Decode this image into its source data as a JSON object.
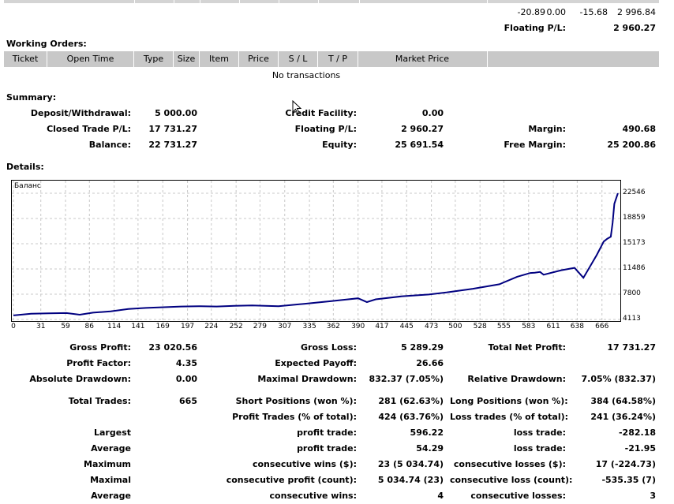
{
  "top_row": {
    "v1": "-20.89",
    "v2": "0.00",
    "v3": "-15.68",
    "v4": "2 996.84"
  },
  "floating_top": {
    "label": "Floating P/L:",
    "value": "2 960.27"
  },
  "working_orders": {
    "title": "Working Orders:",
    "columns": [
      "Ticket",
      "Open Time",
      "Type",
      "Size",
      "Item",
      "Price",
      "S / L",
      "T / P",
      "Market Price"
    ],
    "empty_text": "No transactions"
  },
  "summary": {
    "title": "Summary:",
    "deposit_label": "Deposit/Withdrawal:",
    "deposit_value": "5 000.00",
    "credit_label": "Credit Facility:",
    "credit_value": "0.00",
    "closed_label": "Closed Trade P/L:",
    "closed_value": "17 731.27",
    "floating_label": "Floating P/L:",
    "floating_value": "2 960.27",
    "margin_label": "Margin:",
    "margin_value": "490.68",
    "balance_label": "Balance:",
    "balance_value": "22 731.27",
    "equity_label": "Equity:",
    "equity_value": "25 691.54",
    "free_margin_label": "Free Margin:",
    "free_margin_value": "25 200.86"
  },
  "details_title": "Details:",
  "chart_data": {
    "type": "line",
    "title": "Баланс",
    "x_ticks": [
      "0",
      "31",
      "59",
      "86",
      "114",
      "141",
      "169",
      "197",
      "224",
      "252",
      "279",
      "307",
      "335",
      "362",
      "390",
      "417",
      "445",
      "473",
      "500",
      "528",
      "555",
      "583",
      "611",
      "638",
      "666"
    ],
    "y_ticks": [
      "22546",
      "18859",
      "15173",
      "11486",
      "7800",
      "4113"
    ],
    "xlim": [
      0,
      685
    ],
    "ylim": [
      4113,
      24300
    ],
    "grid": true,
    "series": [
      {
        "x": [
          0,
          20,
          40,
          60,
          75,
          90,
          110,
          130,
          150,
          170,
          190,
          210,
          230,
          250,
          270,
          300,
          330,
          360,
          390,
          400,
          410,
          440,
          470,
          490,
          520,
          550,
          570,
          585,
          590,
          596,
          600,
          620,
          635,
          645,
          660,
          668,
          672,
          676,
          678,
          680,
          684
        ],
        "y": [
          4700,
          4950,
          5000,
          5050,
          4800,
          5100,
          5300,
          5650,
          5800,
          5900,
          6000,
          6050,
          6000,
          6100,
          6150,
          6050,
          6400,
          6800,
          7200,
          6650,
          7050,
          7500,
          7750,
          8050,
          8600,
          9250,
          10350,
          10900,
          10950,
          11050,
          10650,
          11300,
          11650,
          10200,
          13500,
          15500,
          15900,
          16200,
          18200,
          21000,
          22546
        ]
      }
    ]
  },
  "stats": {
    "gross_profit_label": "Gross Profit:",
    "gross_profit_value": "23 020.56",
    "gross_loss_label": "Gross Loss:",
    "gross_loss_value": "5 289.29",
    "total_net_label": "Total Net Profit:",
    "total_net_value": "17 731.27",
    "profit_factor_label": "Profit Factor:",
    "profit_factor_value": "4.35",
    "expected_label": "Expected Payoff:",
    "expected_value": "26.66",
    "abs_dd_label": "Absolute Drawdown:",
    "abs_dd_value": "0.00",
    "max_dd_label": "Maximal Drawdown:",
    "max_dd_value": "832.37 (7.05%)",
    "rel_dd_label": "Relative Drawdown:",
    "rel_dd_value": "7.05% (832.37)",
    "total_trades_label": "Total Trades:",
    "total_trades_value": "665",
    "short_label": "Short Positions (won %):",
    "short_value": "281 (62.63%)",
    "long_label": "Long Positions (won %):",
    "long_value": "384 (64.58%)",
    "profit_trades_label": "Profit Trades (% of total):",
    "profit_trades_value": "424 (63.76%)",
    "loss_trades_label": "Loss trades (% of total):",
    "loss_trades_value": "241 (36.24%)",
    "largest_label": "Largest",
    "largest_profit_label": "profit trade:",
    "largest_profit_value": "596.22",
    "largest_loss_label": "loss trade:",
    "largest_loss_value": "-282.18",
    "average_label": "Average",
    "average_profit_label": "profit trade:",
    "average_profit_value": "54.29",
    "average_loss_label": "loss trade:",
    "average_loss_value": "-21.95",
    "maximum_label": "Maximum",
    "cons_wins_label": "consecutive wins ($):",
    "cons_wins_value": "23 (5 034.74)",
    "cons_losses_label": "consecutive losses ($):",
    "cons_losses_value": "17 (-224.73)",
    "maximal_label": "Maximal",
    "cons_profit_label": "consecutive profit (count):",
    "cons_profit_value": "5 034.74 (23)",
    "cons_loss_label": "consecutive loss (count):",
    "cons_loss_value": "-535.35 (7)",
    "average2_label": "Average",
    "avg_cons_wins_label": "consecutive wins:",
    "avg_cons_wins_value": "4",
    "avg_cons_losses_label": "consecutive losses:",
    "avg_cons_losses_value": "3"
  }
}
